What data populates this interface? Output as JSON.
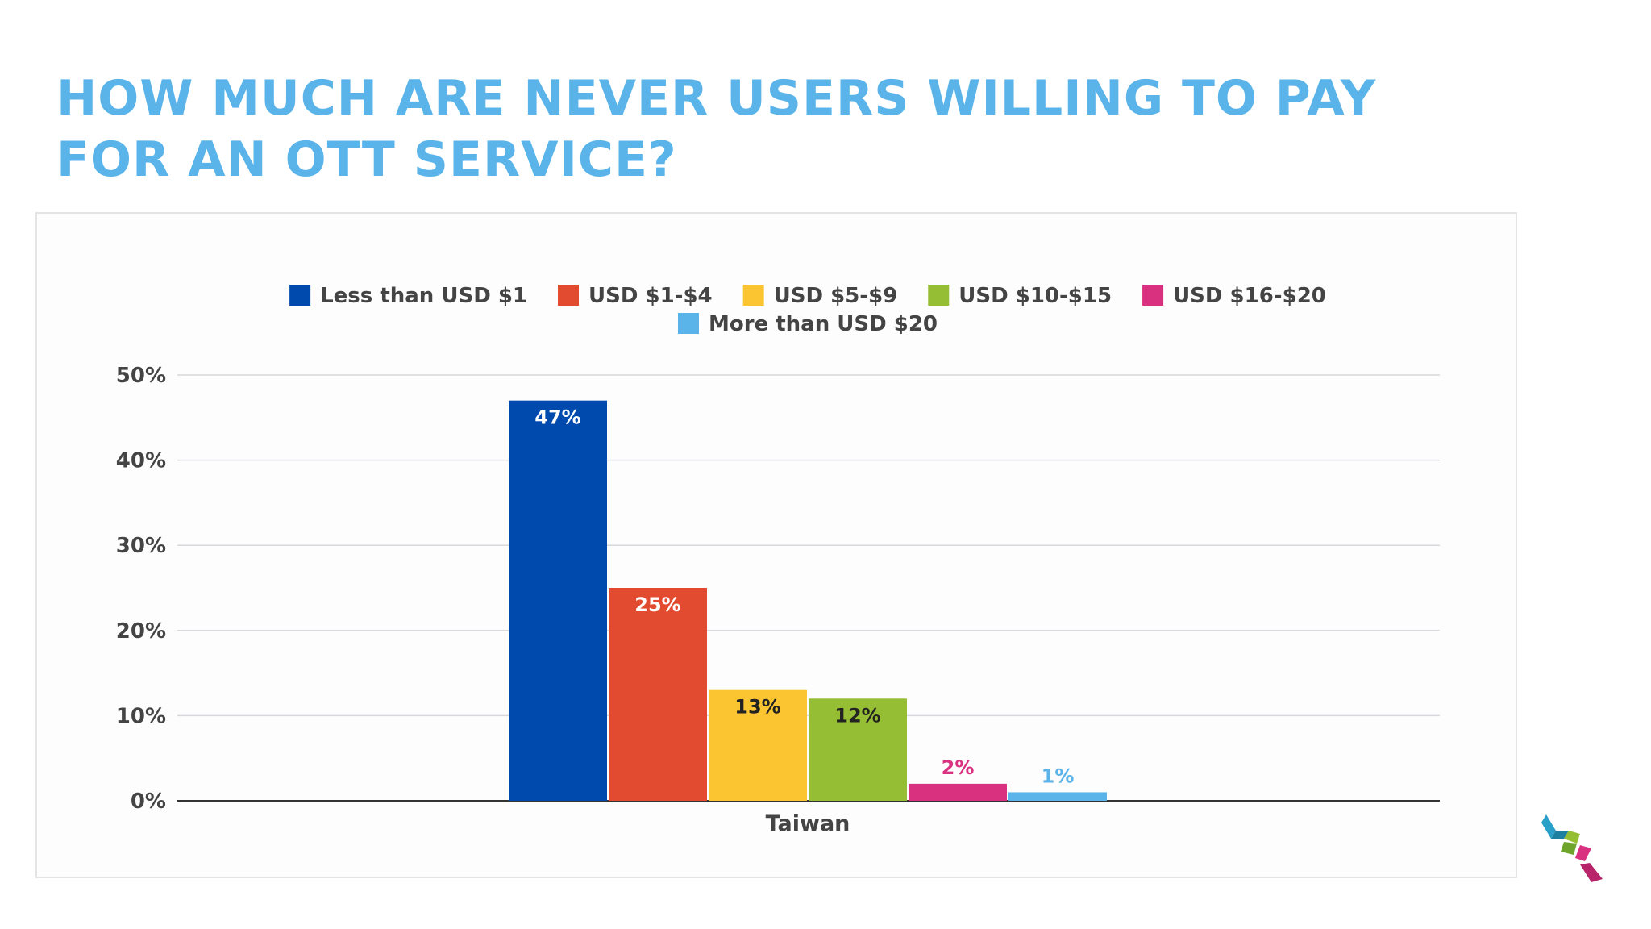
{
  "title": "HOW MUCH ARE NEVER USERS WILLING TO PAY FOR AN OTT SERVICE?",
  "chart_data": {
    "type": "bar",
    "title": "",
    "categories": [
      "Taiwan"
    ],
    "series": [
      {
        "name": "Less than USD $1",
        "values": [
          47
        ],
        "color": "#004aad",
        "label": "47%",
        "label_color": "#ffffff",
        "label_inside": true
      },
      {
        "name": "USD $1-$4",
        "values": [
          25
        ],
        "color": "#e34b31",
        "label": "25%",
        "label_color": "#ffffff",
        "label_inside": true
      },
      {
        "name": "USD $5-$9",
        "values": [
          13
        ],
        "color": "#fbc532",
        "label": "13%",
        "label_color": "#222222",
        "label_inside": true
      },
      {
        "name": "USD $10-$15",
        "values": [
          12
        ],
        "color": "#96be34",
        "label": "12%",
        "label_color": "#222222",
        "label_inside": true
      },
      {
        "name": "USD $16-$20",
        "values": [
          2
        ],
        "color": "#d9307f",
        "label": "2%",
        "label_color": "#d9307f",
        "label_inside": false
      },
      {
        "name": "More than USD $20",
        "values": [
          1
        ],
        "color": "#5ab4ea",
        "label": "1%",
        "label_color": "#5ab4ea",
        "label_inside": false
      }
    ],
    "y_ticks": [
      "0%",
      "10%",
      "20%",
      "30%",
      "40%",
      "50%"
    ],
    "ylim": [
      0,
      50
    ],
    "xlabel": "",
    "ylabel": "",
    "grid": true,
    "legend_position": "top"
  },
  "colors": {
    "title": "#5ab4ea",
    "grid": "#d8d8dc",
    "axis": "#333333"
  },
  "logo_icon": "company-logo-icon"
}
